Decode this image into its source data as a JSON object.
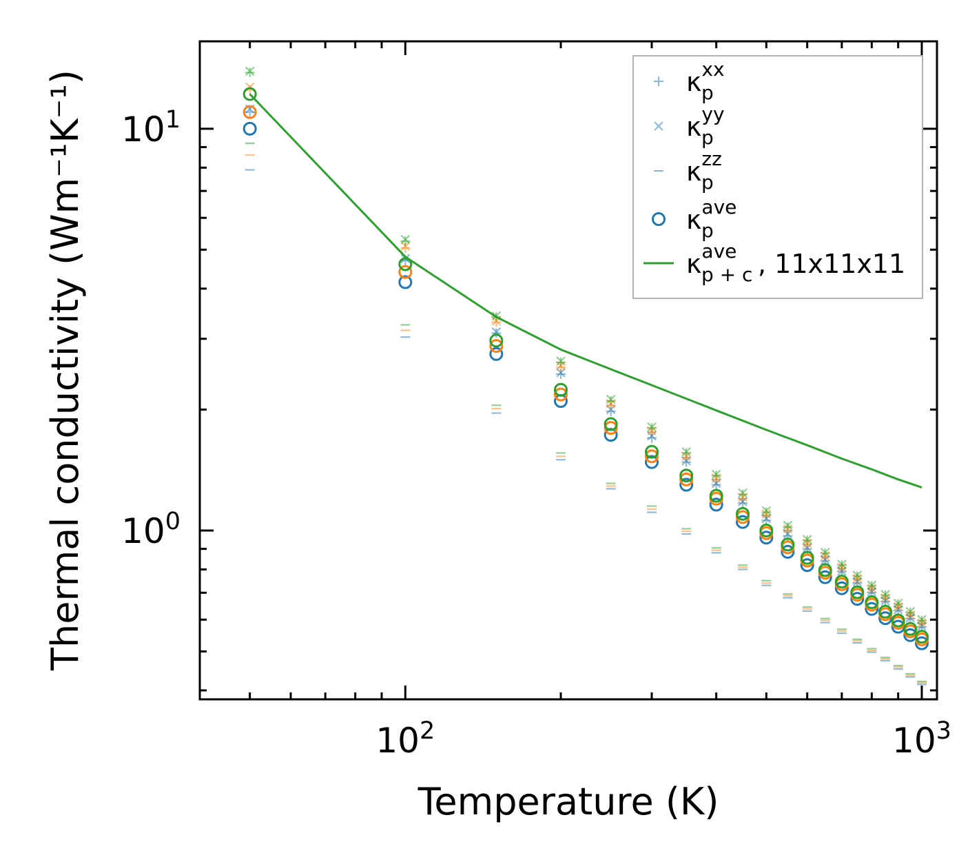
{
  "chart_data": {
    "type": "scatter",
    "title": "",
    "xlabel": "Temperature (K)",
    "ylabel": "Thermal conductivity (Wm⁻¹K⁻¹)",
    "xscale": "log",
    "yscale": "log",
    "xlim": [
      40,
      1070
    ],
    "ylim": [
      0.38,
      16.5
    ],
    "x_ticks": [
      {
        "value": 100,
        "base": "10",
        "exp": "2"
      },
      {
        "value": 1000,
        "base": "10",
        "exp": "3"
      }
    ],
    "y_ticks": [
      {
        "value": 1,
        "base": "10",
        "exp": "0"
      },
      {
        "value": 10,
        "base": "10",
        "exp": "1"
      }
    ],
    "x": [
      50,
      100,
      150,
      200,
      250,
      300,
      350,
      400,
      450,
      500,
      550,
      600,
      650,
      700,
      750,
      800,
      850,
      900,
      950,
      1000
    ],
    "colors": {
      "c1": "#1f77b4",
      "c2": "#ff7f0e",
      "c3": "#2ca02c"
    },
    "legend": {
      "location": "top-right",
      "entries": [
        {
          "marker": "plus",
          "label": "κ",
          "sub": "p",
          "sup": "xx",
          "suffix": ""
        },
        {
          "marker": "x",
          "label": "κ",
          "sub": "p",
          "sup": "yy",
          "suffix": ""
        },
        {
          "marker": "dash",
          "label": "κ",
          "sub": "p",
          "sup": "zz",
          "suffix": ""
        },
        {
          "marker": "circle",
          "label": "κ",
          "sub": "p",
          "sup": "ave",
          "suffix": ""
        },
        {
          "marker": "line",
          "label": "κ",
          "sub": "p + c",
          "sup": "ave",
          "suffix": ", 11x11x11"
        }
      ]
    },
    "series": [
      {
        "name": "kxx_c1",
        "marker": "plus",
        "color": "#1f77b4",
        "values": [
          11.0,
          4.7,
          3.1,
          2.45,
          1.98,
          1.7,
          1.48,
          1.3,
          1.17,
          1.06,
          0.97,
          0.9,
          0.84,
          0.79,
          0.74,
          0.7,
          0.665,
          0.632,
          0.603,
          0.575
        ]
      },
      {
        "name": "kxx_c2",
        "marker": "plus",
        "color": "#ff7f0e",
        "values": [
          12.5,
          5.05,
          3.3,
          2.55,
          2.05,
          1.76,
          1.52,
          1.34,
          1.2,
          1.09,
          1.0,
          0.925,
          0.86,
          0.805,
          0.757,
          0.715,
          0.678,
          0.645,
          0.615,
          0.587
        ]
      },
      {
        "name": "kxx_c3",
        "marker": "plus",
        "color": "#2ca02c",
        "values": [
          13.8,
          5.25,
          3.4,
          2.62,
          2.1,
          1.8,
          1.56,
          1.37,
          1.23,
          1.11,
          1.02,
          0.945,
          0.878,
          0.82,
          0.77,
          0.728,
          0.69,
          0.656,
          0.625,
          0.597
        ]
      },
      {
        "name": "kyy_c1",
        "marker": "x",
        "color": "#1f77b4",
        "values": [
          11.2,
          4.75,
          3.12,
          2.47,
          2.0,
          1.72,
          1.49,
          1.31,
          1.18,
          1.07,
          0.98,
          0.905,
          0.845,
          0.792,
          0.745,
          0.704,
          0.668,
          0.635,
          0.606,
          0.578
        ]
      },
      {
        "name": "kyy_c2",
        "marker": "x",
        "color": "#ff7f0e",
        "values": [
          12.7,
          5.1,
          3.32,
          2.57,
          2.07,
          1.77,
          1.53,
          1.35,
          1.21,
          1.1,
          1.01,
          0.93,
          0.865,
          0.81,
          0.76,
          0.718,
          0.68,
          0.647,
          0.617,
          0.589
        ]
      },
      {
        "name": "kyy_c3",
        "marker": "x",
        "color": "#2ca02c",
        "values": [
          13.9,
          5.3,
          3.42,
          2.64,
          2.12,
          1.81,
          1.57,
          1.38,
          1.24,
          1.12,
          1.03,
          0.95,
          0.882,
          0.824,
          0.774,
          0.731,
          0.693,
          0.659,
          0.628,
          0.6
        ]
      },
      {
        "name": "kzz_c1",
        "marker": "dash",
        "color": "#1f77b4",
        "values": [
          7.9,
          3.03,
          1.96,
          1.5,
          1.27,
          1.11,
          0.98,
          0.88,
          0.8,
          0.73,
          0.68,
          0.63,
          0.59,
          0.555,
          0.525,
          0.498,
          0.474,
          0.452,
          0.432,
          0.414
        ]
      },
      {
        "name": "kzz_c2",
        "marker": "dash",
        "color": "#ff7f0e",
        "values": [
          8.6,
          3.15,
          2.01,
          1.53,
          1.29,
          1.13,
          0.995,
          0.893,
          0.81,
          0.74,
          0.688,
          0.638,
          0.598,
          0.562,
          0.531,
          0.503,
          0.479,
          0.457,
          0.436,
          0.418
        ]
      },
      {
        "name": "kzz_c3",
        "marker": "dash",
        "color": "#2ca02c",
        "values": [
          9.2,
          3.25,
          2.05,
          1.56,
          1.31,
          1.15,
          1.01,
          0.905,
          0.82,
          0.75,
          0.695,
          0.645,
          0.604,
          0.568,
          0.536,
          0.508,
          0.483,
          0.461,
          0.44,
          0.421
        ]
      },
      {
        "name": "kave_c1",
        "marker": "circle",
        "color": "#1f77b4",
        "values": [
          10.0,
          4.15,
          2.75,
          2.1,
          1.73,
          1.48,
          1.3,
          1.16,
          1.05,
          0.96,
          0.885,
          0.82,
          0.765,
          0.718,
          0.676,
          0.638,
          0.605,
          0.576,
          0.549,
          0.524
        ]
      },
      {
        "name": "kave_c2",
        "marker": "circle",
        "color": "#ff7f0e",
        "values": [
          11.0,
          4.4,
          2.88,
          2.18,
          1.8,
          1.53,
          1.34,
          1.2,
          1.08,
          0.985,
          0.908,
          0.842,
          0.785,
          0.735,
          0.692,
          0.654,
          0.619,
          0.589,
          0.561,
          0.536
        ]
      },
      {
        "name": "kave_c3",
        "marker": "circle",
        "color": "#2ca02c",
        "values": [
          12.2,
          4.6,
          2.97,
          2.24,
          1.84,
          1.57,
          1.37,
          1.22,
          1.1,
          1.0,
          0.923,
          0.855,
          0.797,
          0.746,
          0.702,
          0.663,
          0.628,
          0.597,
          0.569,
          0.544
        ]
      },
      {
        "name": "kpc_ave",
        "marker": "line",
        "color": "#2ca02c",
        "x": [
          50,
          100,
          150,
          200,
          250,
          300,
          400,
          500,
          600,
          700,
          800,
          900,
          1000
        ],
        "values": [
          12.2,
          4.8,
          3.4,
          2.82,
          2.52,
          2.3,
          1.99,
          1.78,
          1.63,
          1.51,
          1.42,
          1.34,
          1.28
        ]
      }
    ]
  }
}
